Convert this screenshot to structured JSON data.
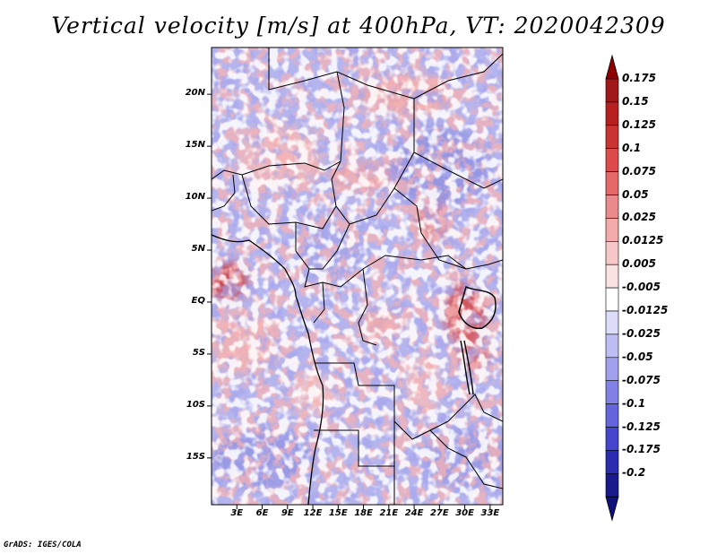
{
  "title": "Vertical velocity [m/s] at 400hPa, VT: 2020042309",
  "credit": "GrADS: IGES/COLA",
  "map": {
    "lat_range": [
      -19.5,
      24.5
    ],
    "lon_range": [
      0,
      34.5
    ],
    "y_ticks": [
      {
        "lat": 20,
        "label": "20N"
      },
      {
        "lat": 15,
        "label": "15N"
      },
      {
        "lat": 10,
        "label": "10N"
      },
      {
        "lat": 5,
        "label": "5N"
      },
      {
        "lat": 0,
        "label": "EQ"
      },
      {
        "lat": -5,
        "label": "5S"
      },
      {
        "lat": -10,
        "label": "10S"
      },
      {
        "lat": -15,
        "label": "15S"
      }
    ],
    "x_ticks": [
      {
        "lon": 3,
        "label": "3E"
      },
      {
        "lon": 6,
        "label": "6E"
      },
      {
        "lon": 9,
        "label": "9E"
      },
      {
        "lon": 12,
        "label": "12E"
      },
      {
        "lon": 15,
        "label": "15E"
      },
      {
        "lon": 18,
        "label": "18E"
      },
      {
        "lon": 21,
        "label": "21E"
      },
      {
        "lon": 24,
        "label": "24E"
      },
      {
        "lon": 27,
        "label": "27E"
      },
      {
        "lon": 30,
        "label": "30E"
      },
      {
        "lon": 33,
        "label": "33E"
      }
    ]
  },
  "colorbar": {
    "levels": [
      {
        "label": "0.175",
        "color": "#a01818"
      },
      {
        "label": "0.15",
        "color": "#b82020"
      },
      {
        "label": "0.125",
        "color": "#cc3333"
      },
      {
        "label": "0.1",
        "color": "#dd4c4c"
      },
      {
        "label": "0.075",
        "color": "#e46a6a"
      },
      {
        "label": "0.05",
        "color": "#eb8a8a"
      },
      {
        "label": "0.025",
        "color": "#f2aaaa"
      },
      {
        "label": "0.0125",
        "color": "#f7c8c8"
      },
      {
        "label": "0.005",
        "color": "#fbe2e2"
      },
      {
        "label": "-0.005",
        "color": "#ffffff"
      },
      {
        "label": "-0.0125",
        "color": "#dcdcf8"
      },
      {
        "label": "-0.025",
        "color": "#bebef2"
      },
      {
        "label": "-0.05",
        "color": "#a0a0ec"
      },
      {
        "label": "-0.075",
        "color": "#8282e4"
      },
      {
        "label": "-0.1",
        "color": "#6464dc"
      },
      {
        "label": "-0.125",
        "color": "#4646cc"
      },
      {
        "label": "-0.175",
        "color": "#2c2cb0"
      },
      {
        "label": "-0.2",
        "color": "#1a1a8c"
      }
    ],
    "top_color": "#900000",
    "bottom_color": "#10107a"
  },
  "fields": {
    "background": "#b4b4ee",
    "features": [
      {
        "lon": 2,
        "lat": 2,
        "rx": 2.2,
        "ry": 1.8,
        "color": "#d03030"
      },
      {
        "lon": 30,
        "lat": -1,
        "rx": 2.5,
        "ry": 3,
        "color": "#d84848"
      },
      {
        "lon": 31,
        "lat": -5,
        "rx": 2,
        "ry": 1.5,
        "color": "#e06060"
      },
      {
        "lon": 23,
        "lat": 20,
        "rx": 6,
        "ry": 2,
        "color": "#f0a8a8"
      },
      {
        "lon": 8,
        "lat": 14,
        "rx": 5,
        "ry": 3,
        "color": "#f4b8b8"
      },
      {
        "lon": 18,
        "lat": 12,
        "rx": 4,
        "ry": 1.5,
        "color": "#f0a0a0"
      },
      {
        "lon": 26,
        "lat": 8,
        "rx": 2,
        "ry": 2.5,
        "color": "#e88080"
      },
      {
        "lon": 4,
        "lat": -4,
        "rx": 4,
        "ry": 3,
        "color": "#f2b0b0"
      },
      {
        "lon": 20,
        "lat": -2,
        "rx": 3,
        "ry": 1.5,
        "color": "#f0a8a8"
      },
      {
        "lon": 25,
        "lat": -8,
        "rx": 2,
        "ry": 3,
        "color": "#f4bcbc"
      },
      {
        "lon": 27,
        "lat": 13,
        "rx": 6,
        "ry": 4,
        "color": "#9090e0"
      },
      {
        "lon": 6,
        "lat": -15,
        "rx": 6,
        "ry": 3,
        "color": "#9494e2"
      },
      {
        "lon": 30,
        "lat": -15,
        "rx": 5,
        "ry": 3,
        "color": "#9898e4"
      },
      {
        "lon": 14,
        "lat": 5,
        "rx": 4,
        "ry": 3,
        "color": "#a4a4ea"
      },
      {
        "lon": 12,
        "lat": -9,
        "rx": 3,
        "ry": 2,
        "color": "#f6c6c6"
      }
    ]
  }
}
